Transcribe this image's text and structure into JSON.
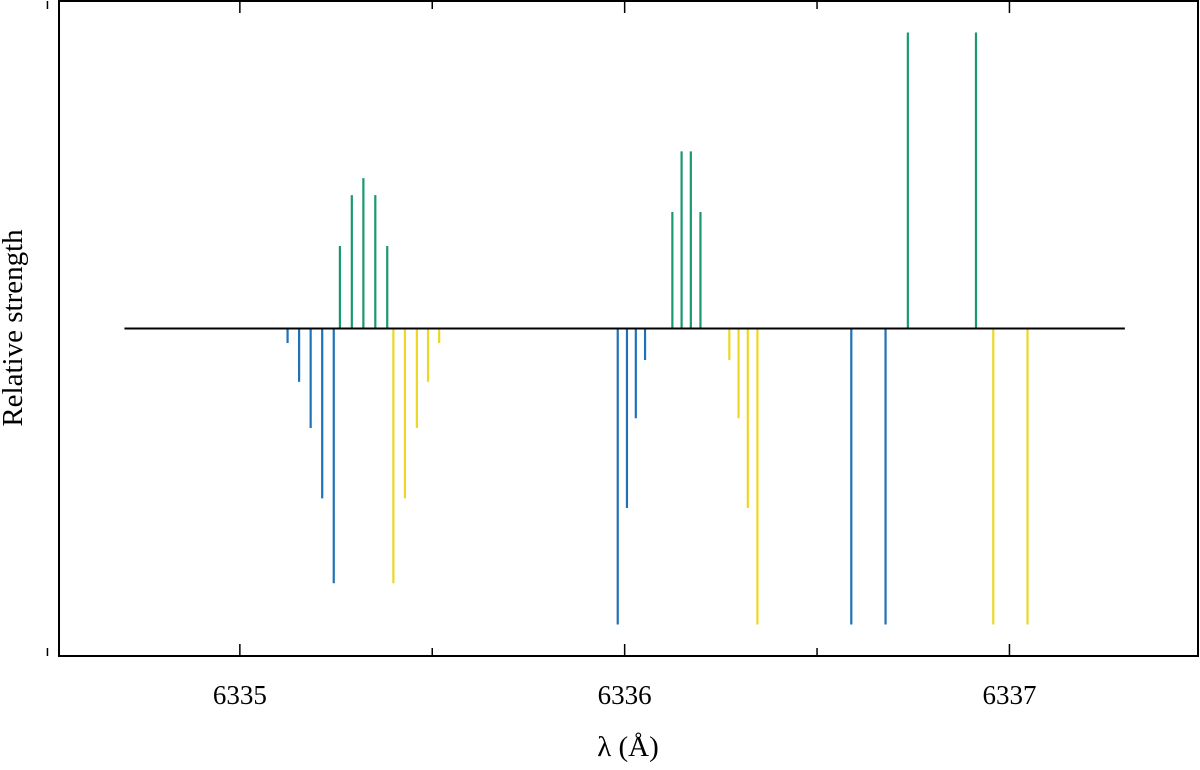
{
  "chart_data": {
    "type": "bar",
    "title": "",
    "xlabel": "λ (Å)",
    "ylabel": "Relative strength",
    "xlim": [
      6334.53,
      6337.49
    ],
    "ylim": [
      -1.35,
      1.35
    ],
    "x_ticks": [
      6335,
      6336,
      6337
    ],
    "x_minor_ticks": [
      6334.5,
      6335.5,
      6336.5,
      6337.5
    ],
    "baseline": {
      "from": 6334.7,
      "to": 6337.3,
      "value": 0
    },
    "grid": false,
    "legend": "none",
    "colors": {
      "blue": "#1f72b8",
      "green": "#1a9a6c",
      "yellow": "#ecd726",
      "axis": "#000000"
    },
    "series": [
      {
        "color": "blue",
        "x": [
          6335.124,
          6335.154,
          6335.184,
          6335.214,
          6335.244,
          6335.982,
          6336.006,
          6336.029,
          6336.053,
          6336.589,
          6336.678
        ],
        "values": [
          -0.06,
          -0.22,
          -0.41,
          -0.7,
          -1.05,
          -1.22,
          -0.74,
          -0.37,
          -0.13,
          -1.22,
          -1.22
        ]
      },
      {
        "color": "green",
        "x": [
          6335.26,
          6335.291,
          6335.321,
          6335.352,
          6335.383,
          6336.124,
          6336.148,
          6336.172,
          6336.197,
          6336.736,
          6336.913
        ],
        "values": [
          0.34,
          0.55,
          0.62,
          0.55,
          0.34,
          0.48,
          0.73,
          0.73,
          0.48,
          1.22,
          1.22
        ]
      },
      {
        "color": "yellow",
        "x": [
          6335.399,
          6335.429,
          6335.46,
          6335.489,
          6335.518,
          6336.272,
          6336.296,
          6336.32,
          6336.345,
          6336.958,
          6337.047
        ],
        "values": [
          -1.05,
          -0.7,
          -0.41,
          -0.22,
          -0.06,
          -0.13,
          -0.37,
          -0.74,
          -1.22,
          -1.22,
          -1.22
        ]
      }
    ]
  }
}
